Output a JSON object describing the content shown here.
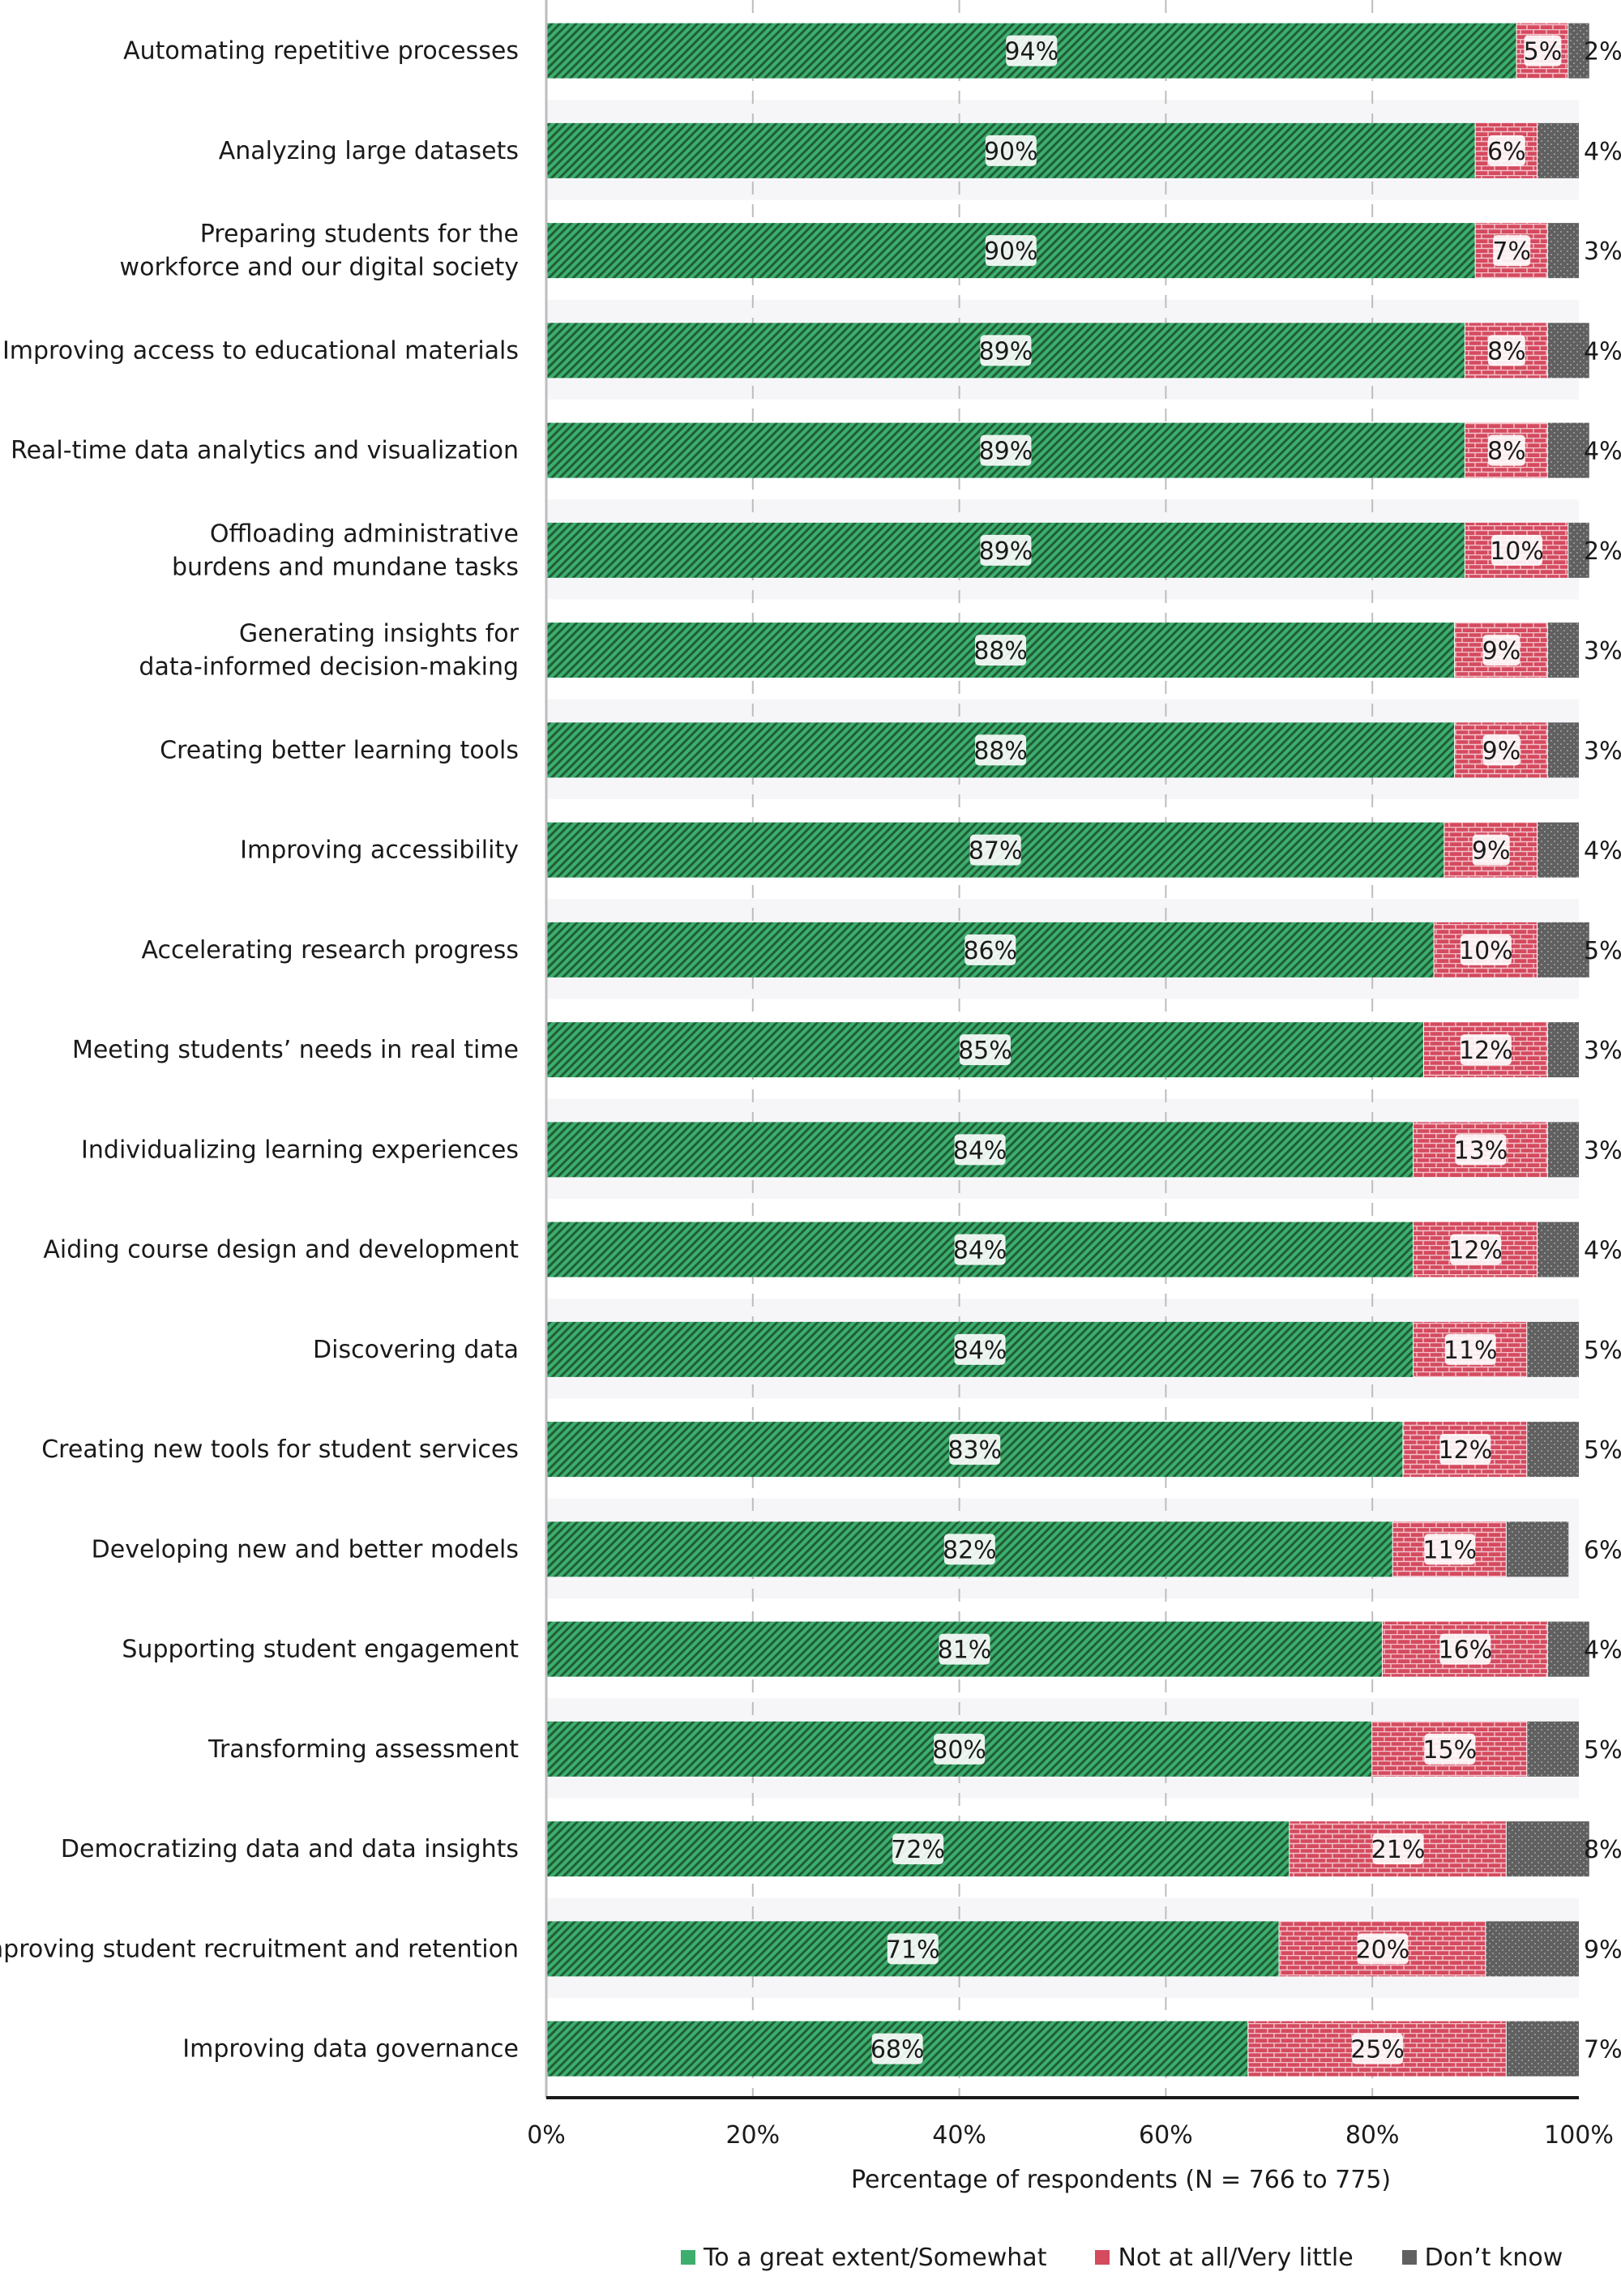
{
  "chart_data": {
    "type": "bar",
    "orientation": "horizontal",
    "stacked": true,
    "xlabel": "Percentage of respondents (N = 766 to 775)",
    "ylabel": "",
    "xlim": [
      0,
      100
    ],
    "x_ticks": [
      "0%",
      "20%",
      "40%",
      "60%",
      "80%",
      "100%"
    ],
    "grid": "vertical dashed",
    "legend_position": "bottom",
    "categories": [
      [
        "Automating repetitive processes"
      ],
      [
        "Analyzing large datasets"
      ],
      [
        "Preparing students for the",
        "workforce and our digital society"
      ],
      [
        "Improving access to educational materials"
      ],
      [
        "Real-time data analytics and visualization"
      ],
      [
        "Offloading administrative",
        "burdens and mundane tasks"
      ],
      [
        "Generating insights for",
        "data-informed decision-making"
      ],
      [
        "Creating better learning tools"
      ],
      [
        "Improving accessibility"
      ],
      [
        "Accelerating research progress"
      ],
      [
        "Meeting students’ needs in real time"
      ],
      [
        "Individualizing learning experiences"
      ],
      [
        "Aiding course design and development"
      ],
      [
        "Discovering data"
      ],
      [
        "Creating new tools for student services"
      ],
      [
        "Developing new and better models"
      ],
      [
        "Supporting student engagement"
      ],
      [
        "Transforming assessment"
      ],
      [
        "Democratizing data and data insights"
      ],
      [
        "Improving student recruitment and retention"
      ],
      [
        "Improving data governance"
      ]
    ],
    "series": [
      {
        "name": "To a great extent/Somewhat",
        "color": "#3dae6d",
        "values": [
          94,
          90,
          90,
          89,
          89,
          89,
          88,
          88,
          87,
          86,
          85,
          84,
          84,
          84,
          83,
          82,
          81,
          80,
          72,
          71,
          68
        ]
      },
      {
        "name": "Not at all/Very little",
        "color": "#d44a5e",
        "values": [
          5,
          6,
          7,
          8,
          8,
          10,
          9,
          9,
          9,
          10,
          12,
          13,
          12,
          11,
          12,
          11,
          16,
          15,
          21,
          20,
          25
        ]
      },
      {
        "name": "Don’t know",
        "color": "#606060",
        "values": [
          2,
          4,
          3,
          4,
          4,
          2,
          3,
          3,
          4,
          5,
          3,
          3,
          4,
          5,
          5,
          6,
          4,
          5,
          8,
          9,
          7
        ]
      }
    ]
  }
}
